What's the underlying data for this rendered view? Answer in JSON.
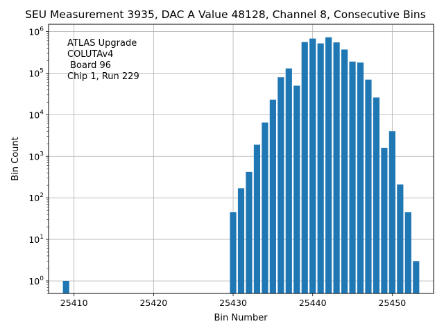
{
  "chart_data": {
    "type": "bar",
    "title": "SEU Measurement 3935, DAC A Value 48128, Channel 8, Consecutive Bins",
    "xlabel": "Bin Number",
    "ylabel": "Bin Count",
    "yscale": "log",
    "xlim": [
      25406.8,
      25455.2
    ],
    "ylim": [
      0.5,
      1500000
    ],
    "grid": true,
    "bar_color": "#1f77b4",
    "x_ticks": [
      25410,
      25420,
      25430,
      25440,
      25450
    ],
    "x_tick_labels": [
      "25410",
      "25420",
      "25430",
      "25440",
      "25450"
    ],
    "y_ticks": [
      1,
      10,
      100,
      1000,
      10000,
      100000,
      1000000
    ],
    "y_tick_labels": [
      {
        "base": "10",
        "exp": "0"
      },
      {
        "base": "10",
        "exp": "1"
      },
      {
        "base": "10",
        "exp": "2"
      },
      {
        "base": "10",
        "exp": "3"
      },
      {
        "base": "10",
        "exp": "4"
      },
      {
        "base": "10",
        "exp": "5"
      },
      {
        "base": "10",
        "exp": "6"
      }
    ],
    "x": [
      25409,
      25430,
      25431,
      25432,
      25433,
      25434,
      25435,
      25436,
      25437,
      25438,
      25439,
      25440,
      25441,
      25442,
      25443,
      25444,
      25445,
      25446,
      25447,
      25448,
      25449,
      25450,
      25451,
      25452,
      25453
    ],
    "values": [
      1,
      45,
      170,
      420,
      1900,
      6500,
      23000,
      80000,
      130000,
      50000,
      560000,
      680000,
      520000,
      730000,
      550000,
      370000,
      190000,
      180000,
      70000,
      26000,
      1600,
      4000,
      210,
      45,
      3
    ],
    "annotation": [
      "ATLAS Upgrade",
      "COLUTAv4",
      " Board 96",
      "Chip 1, Run 229"
    ]
  }
}
